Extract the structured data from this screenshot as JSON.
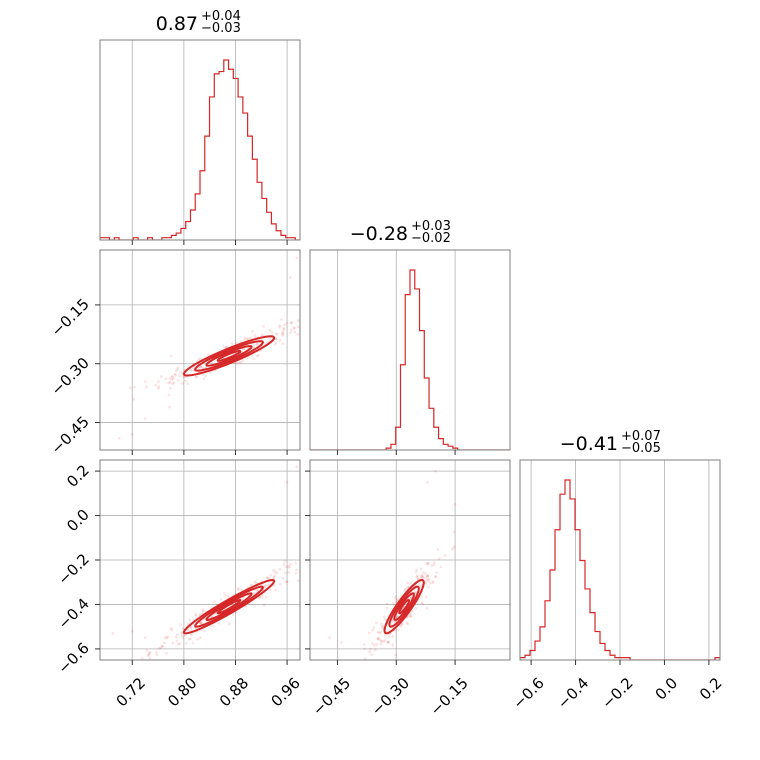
{
  "chart_data": {
    "type": "corner",
    "color": "#d62728",
    "grid": true,
    "parameters": [
      {
        "value": "0.87",
        "plus": "+0.04",
        "minus": "−0.03",
        "center": 0.87,
        "plus_err": 0.04,
        "minus_err": 0.03,
        "range": [
          0.67,
          0.98
        ],
        "ticks": [
          0.72,
          0.8,
          0.88,
          0.96
        ],
        "tick_labels": [
          "0.72",
          "0.80",
          "0.88",
          "0.96"
        ]
      },
      {
        "value": "−0.28",
        "plus": "+0.03",
        "minus": "−0.02",
        "center": -0.28,
        "plus_err": 0.03,
        "minus_err": 0.02,
        "range": [
          -0.52,
          -0.01
        ],
        "ticks": [
          -0.45,
          -0.3,
          -0.15
        ],
        "tick_labels": [
          "−0.45",
          "−0.30",
          "−0.15"
        ]
      },
      {
        "value": "−0.41",
        "plus": "+0.07",
        "minus": "−0.05",
        "center": -0.41,
        "plus_err": 0.07,
        "minus_err": 0.05,
        "range": [
          -0.65,
          0.25
        ],
        "ticks": [
          -0.6,
          -0.4,
          -0.2,
          0.0,
          0.2
        ],
        "tick_labels": [
          "−0.6",
          "−0.4",
          "−0.2",
          "0.0",
          "0.2"
        ]
      }
    ],
    "histograms": [
      {
        "counts": [
          1,
          1,
          0,
          1,
          0,
          0,
          0,
          1,
          0,
          0,
          1,
          0,
          0,
          1,
          1,
          2,
          3,
          5,
          8,
          13,
          20,
          30,
          45,
          62,
          72,
          73,
          78,
          74,
          70,
          62,
          55,
          45,
          35,
          25,
          18,
          12,
          7,
          4,
          2,
          1,
          1,
          0
        ]
      },
      {
        "counts": [
          0,
          0,
          0,
          0,
          0,
          0,
          0,
          0,
          0,
          0,
          0,
          0,
          0,
          0,
          0,
          0,
          1,
          3,
          12,
          45,
          82,
          95,
          85,
          63,
          38,
          22,
          12,
          6,
          3,
          2,
          1,
          0,
          0,
          0,
          0,
          0,
          0,
          0,
          0,
          0,
          0,
          0
        ]
      },
      {
        "counts": [
          1,
          2,
          4,
          8,
          14,
          25,
          38,
          55,
          70,
          76,
          68,
          55,
          42,
          30,
          20,
          12,
          7,
          4,
          2,
          1,
          1,
          1,
          0,
          0,
          0,
          0,
          0,
          0,
          0,
          0,
          0,
          0,
          0,
          0,
          0,
          0,
          0,
          0,
          0,
          1
        ]
      }
    ],
    "pairs": [
      {
        "row": 1,
        "col": 0,
        "rho": 0.92,
        "outliers": [
          [
            0.7,
            -0.49
          ],
          [
            0.72,
            -0.48
          ],
          [
            0.74,
            -0.44
          ],
          [
            0.975,
            -0.03
          ],
          [
            0.965,
            -0.08
          ],
          [
            0.78,
            -0.28
          ]
        ]
      },
      {
        "row": 2,
        "col": 0,
        "rho": 0.96,
        "outliers": [
          [
            0.69,
            -0.53
          ],
          [
            0.72,
            -0.52
          ],
          [
            0.74,
            -0.55
          ],
          [
            0.975,
            0.22
          ],
          [
            0.96,
            0.15
          ],
          [
            0.955,
            -0.22
          ]
        ]
      },
      {
        "row": 2,
        "col": 1,
        "rho": 0.9,
        "outliers": [
          [
            -0.47,
            -0.55
          ],
          [
            -0.44,
            -0.57
          ],
          [
            -0.2,
            0.2
          ],
          [
            -0.22,
            0.15
          ],
          [
            -0.35,
            -0.58
          ],
          [
            -0.15,
            0.05
          ]
        ]
      }
    ]
  }
}
